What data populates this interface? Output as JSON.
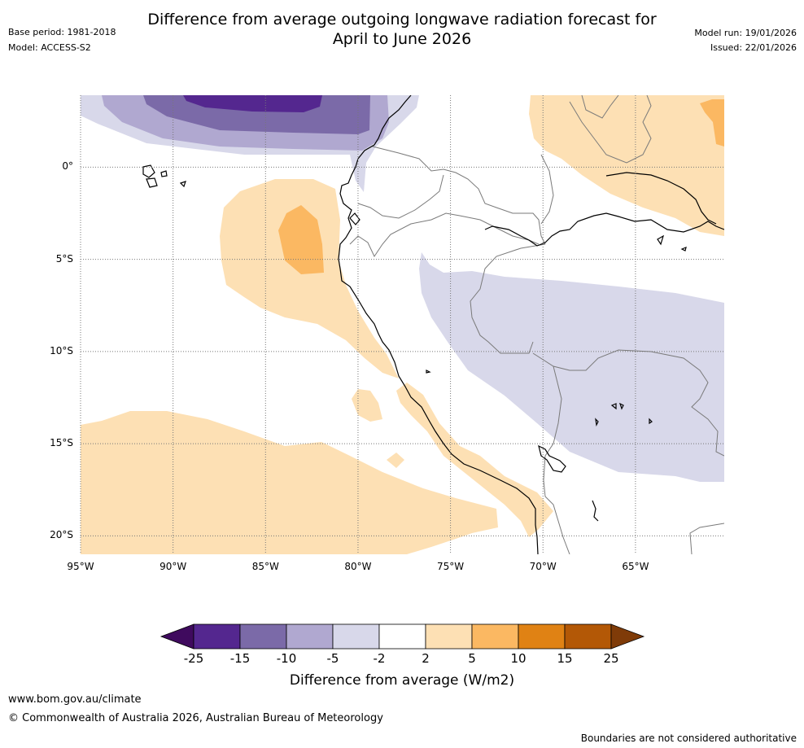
{
  "header": {
    "title_line1": "Difference from average outgoing longwave radiation forecast for",
    "title_line2": "April to June 2026",
    "base_period": "Base period: 1981-2018",
    "model": "Model: ACCESS-S2",
    "model_run": "Model run: 19/01/2026",
    "issued": "Issued: 22/01/2026"
  },
  "map": {
    "lat_labels": [
      "0°",
      "5°S",
      "10°S",
      "15°S",
      "20°S"
    ],
    "lon_labels": [
      "95°W",
      "90°W",
      "85°W",
      "80°W",
      "75°W",
      "70°W",
      "65°W"
    ],
    "lat_values": [
      0,
      -5,
      -10,
      -15,
      -20
    ],
    "lon_values": [
      -95,
      -90,
      -85,
      -80,
      -75,
      -70,
      -65
    ],
    "extent": {
      "lon_min": -95,
      "lon_max": -60.2,
      "lat_min": -21,
      "lat_max": 3.9
    }
  },
  "colorbar": {
    "title": "Difference from average (W/m2)",
    "ticks": [
      "-25",
      "-15",
      "-10",
      "-5",
      "-2",
      "2",
      "5",
      "10",
      "15",
      "25"
    ],
    "colors": [
      "#3f0a5e",
      "#54278f",
      "#7b6aa8",
      "#b0a8d0",
      "#d8d8ea",
      "#ffffff",
      "#fde0b4",
      "#fbb862",
      "#e08214",
      "#b35806",
      "#7f3b08"
    ]
  },
  "footer": {
    "website": "www.bom.gov.au/climate",
    "copyright": "© Commonwealth of Australia 2026, Australian Bureau of Meteorology",
    "disclaimer": "Boundaries are not considered authoritative"
  }
}
